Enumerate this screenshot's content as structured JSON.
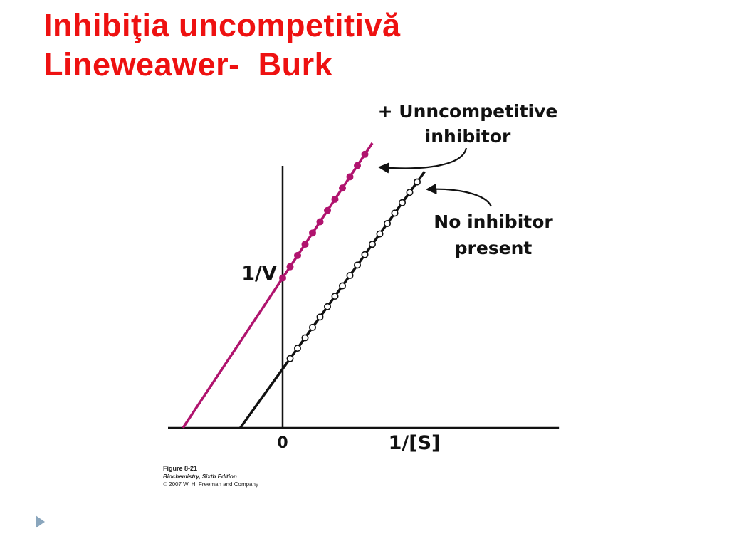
{
  "title": {
    "line1": "Inhibiţia uncompetitivă",
    "line2": "Lineweawer-  Burk"
  },
  "colors": {
    "title": "#ee1111",
    "inhibited_series": "#b0136e",
    "control_series": "#111111",
    "divider": "#b4c6d2"
  },
  "chart_data": {
    "type": "line",
    "title": "",
    "xlabel": "1/[S]",
    "ylabel": "1/V",
    "x_tick_labels": [
      "0"
    ],
    "xlim": [
      -1,
      1.3
    ],
    "ylim": [
      0,
      1
    ],
    "grid": false,
    "series": [
      {
        "name": "+ Unncompetitive inhibitor",
        "color": "#b0136e",
        "line_x": [
          -0.4,
          0.36
        ],
        "line_y": [
          0,
          1
        ],
        "point_x": [
          0.0,
          0.03,
          0.06,
          0.09,
          0.12,
          0.15,
          0.18,
          0.21,
          0.24,
          0.27,
          0.3,
          0.33
        ],
        "marker": "filled"
      },
      {
        "name": "No inhibitor present",
        "color": "#111111",
        "line_x": [
          -0.17,
          0.57
        ],
        "line_y": [
          0,
          0.9
        ],
        "point_x": [
          0.03,
          0.06,
          0.09,
          0.12,
          0.15,
          0.18,
          0.21,
          0.24,
          0.27,
          0.3,
          0.33,
          0.36,
          0.39,
          0.42,
          0.45,
          0.48,
          0.51,
          0.54
        ],
        "marker": "open"
      }
    ],
    "annotations": [
      {
        "lines": [
          "+ Unncompetitive",
          "inhibitor"
        ],
        "points_to": "+ Unncompetitive inhibitor"
      },
      {
        "lines": [
          "No inhibitor",
          "present"
        ],
        "points_to": "No inhibitor present"
      }
    ]
  },
  "figure_credit": {
    "figure": "Figure 8-21",
    "book": "Biochemistry, Sixth Edition",
    "copyright": "© 2007 W. H. Freeman and Company"
  }
}
